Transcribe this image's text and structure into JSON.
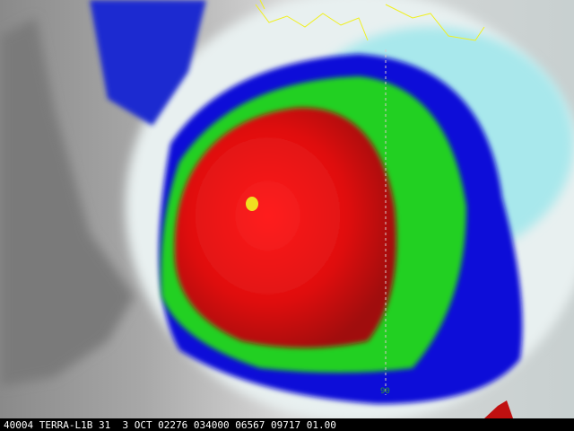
{
  "caption": "40004 TERRA-L1B 31  3 OCT 02276 034000 06567 09717 01.00",
  "grid_label": "90"
}
